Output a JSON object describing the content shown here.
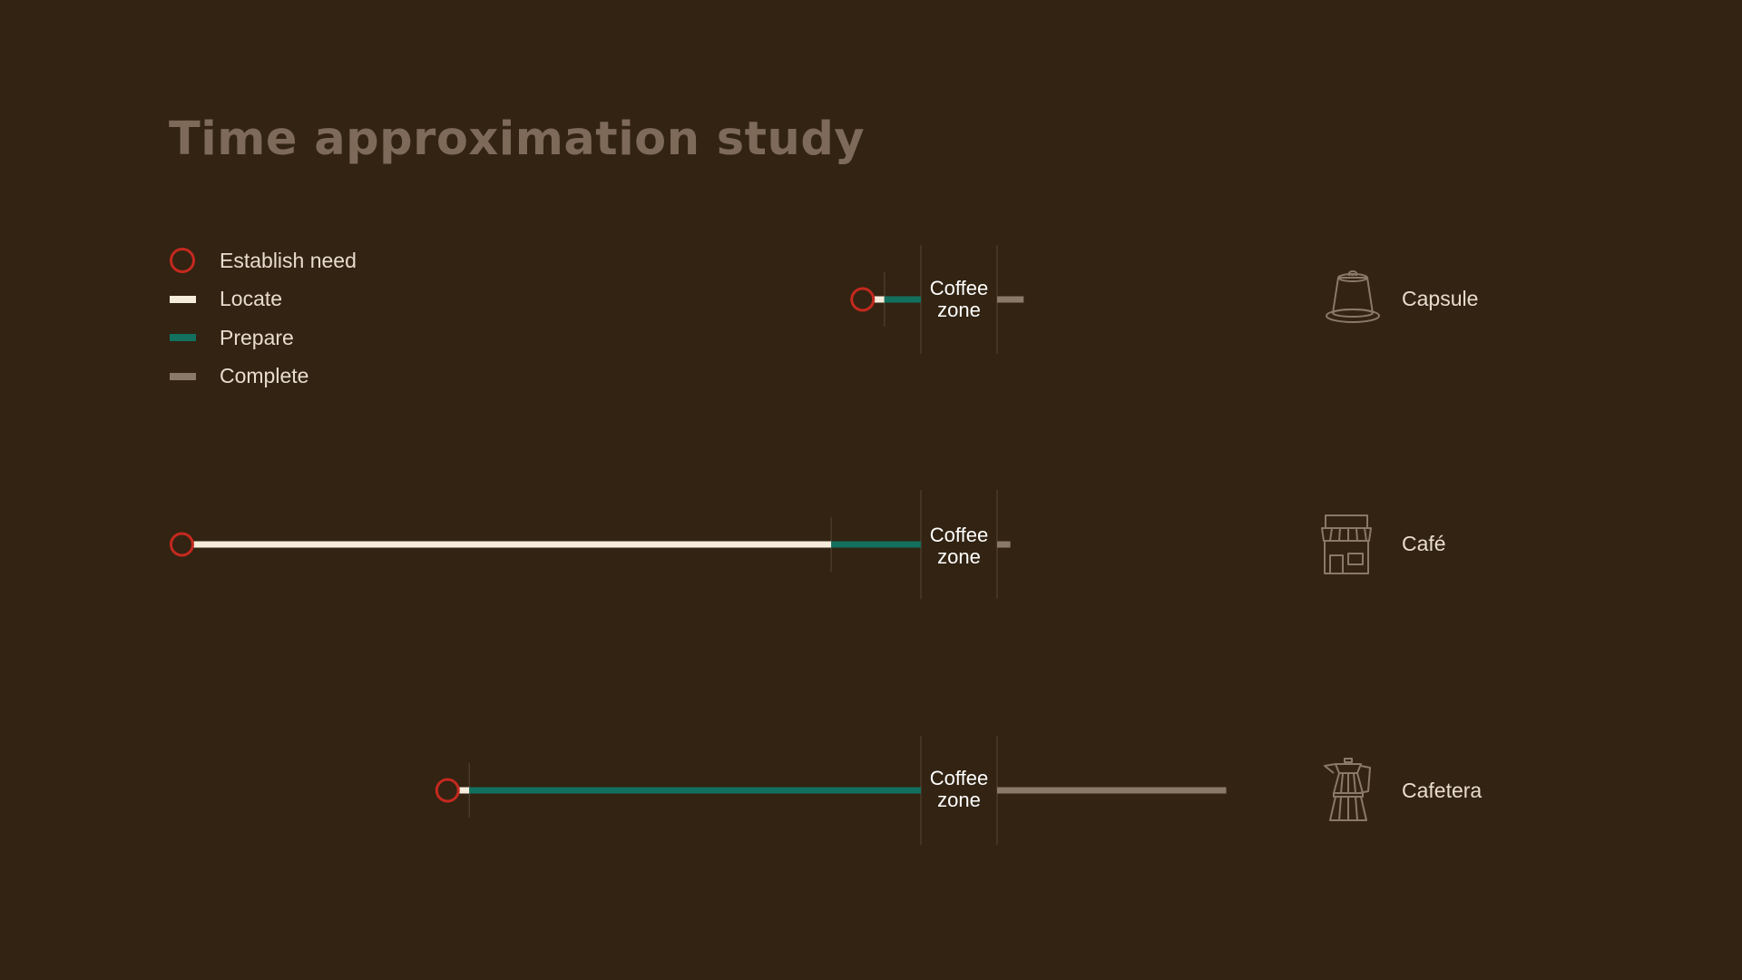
{
  "title": "Time approximation study",
  "legend": [
    {
      "label": "Establish need",
      "shape": "circle",
      "color": "#c4291f"
    },
    {
      "label": "Locate",
      "shape": "line",
      "color": "#f6ecdc"
    },
    {
      "label": "Prepare",
      "shape": "line",
      "color": "#12705f"
    },
    {
      "label": "Complete",
      "shape": "line",
      "color": "#8a7868"
    }
  ],
  "zone_label": "Coffee zone",
  "rows": [
    {
      "label": "Capsule",
      "icon": "capsule-icon",
      "locate": 0.3,
      "prepare": 1.1,
      "complete": 0.8
    },
    {
      "label": "Café",
      "icon": "cafe-icon",
      "locate": 19.2,
      "prepare": 2.7,
      "complete": 0.4
    },
    {
      "label": "Cafetera",
      "icon": "cafetera-icon",
      "locate": 0.3,
      "prepare": 13.6,
      "complete": 6.9
    }
  ],
  "colors": {
    "background": "#322312",
    "title": "#7d6a59",
    "icon": "#8a7868",
    "divider": "#4b3a2a"
  }
}
